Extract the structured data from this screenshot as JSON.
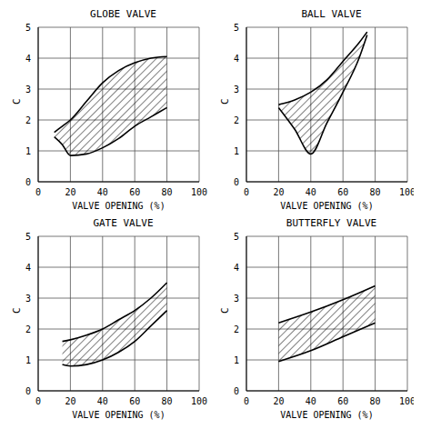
{
  "chart_data": [
    {
      "type": "area",
      "title": "GLOBE VALVE",
      "x_label": "VALVE OPENING (%)",
      "y_label": "C",
      "x": [
        10,
        15,
        20,
        30,
        40,
        50,
        60,
        70,
        80
      ],
      "values": [
        [
          1.45,
          1.6
        ],
        [
          1.2,
          1.8
        ],
        [
          0.85,
          2.0
        ],
        [
          0.9,
          2.6
        ],
        [
          1.1,
          3.2
        ],
        [
          1.4,
          3.6
        ],
        [
          1.8,
          3.85
        ],
        [
          2.1,
          4.0
        ],
        [
          2.4,
          4.05
        ]
      ],
      "color": "#000000",
      "xlim": [
        0,
        100
      ],
      "xticks": [
        0,
        20,
        40,
        60,
        80,
        100
      ],
      "ylim": [
        0,
        5
      ],
      "yticks": [
        0,
        1,
        2,
        3,
        4,
        5
      ],
      "grid": true
    },
    {
      "type": "area",
      "title": "BALL VALVE",
      "x_label": "VALVE OPENING (%)",
      "y_label": "C",
      "x": [
        20,
        30,
        40,
        50,
        60,
        70,
        75
      ],
      "values": [
        [
          2.4,
          2.5
        ],
        [
          1.7,
          2.65
        ],
        [
          0.9,
          2.9
        ],
        [
          1.9,
          3.3
        ],
        [
          2.9,
          3.9
        ],
        [
          4.0,
          4.5
        ],
        [
          4.75,
          4.85
        ]
      ],
      "color": "#000000",
      "xlim": [
        0,
        100
      ],
      "xticks": [
        0,
        20,
        40,
        60,
        80,
        100
      ],
      "ylim": [
        0,
        5
      ],
      "yticks": [
        0,
        1,
        2,
        3,
        4,
        5
      ],
      "grid": true
    },
    {
      "type": "area",
      "title": "GATE VALVE",
      "x_label": "VALVE OPENING (%)",
      "y_label": "C",
      "x": [
        15,
        20,
        30,
        40,
        50,
        60,
        70,
        80
      ],
      "values": [
        [
          0.85,
          1.6
        ],
        [
          0.8,
          1.65
        ],
        [
          0.85,
          1.8
        ],
        [
          1.0,
          2.0
        ],
        [
          1.25,
          2.3
        ],
        [
          1.6,
          2.6
        ],
        [
          2.1,
          3.0
        ],
        [
          2.6,
          3.5
        ]
      ],
      "color": "#000000",
      "xlim": [
        0,
        100
      ],
      "xticks": [
        0,
        20,
        40,
        60,
        80,
        100
      ],
      "ylim": [
        0,
        5
      ],
      "yticks": [
        0,
        1,
        2,
        3,
        4,
        5
      ],
      "grid": true
    },
    {
      "type": "area",
      "title": "BUTTERFLY VALVE",
      "x_label": "VALVE OPENING (%)",
      "y_label": "C",
      "x": [
        20,
        40,
        60,
        80
      ],
      "values": [
        [
          0.95,
          2.2
        ],
        [
          1.3,
          2.55
        ],
        [
          1.75,
          2.95
        ],
        [
          2.2,
          3.4
        ]
      ],
      "color": "#000000",
      "xlim": [
        0,
        100
      ],
      "xticks": [
        0,
        20,
        40,
        60,
        80,
        100
      ],
      "ylim": [
        0,
        5
      ],
      "yticks": [
        0,
        1,
        2,
        3,
        4,
        5
      ],
      "grid": true
    }
  ]
}
